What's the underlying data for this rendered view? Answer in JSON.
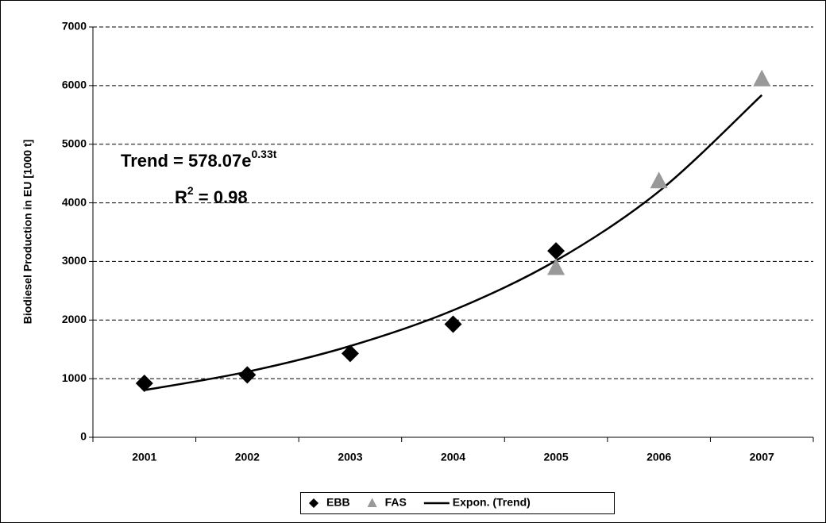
{
  "chart_data": {
    "type": "scatter",
    "y_label": "Biodiesel Production in EU [1000 t]",
    "categories": [
      "2001",
      "2002",
      "2003",
      "2004",
      "2005",
      "2006",
      "2007"
    ],
    "series": [
      {
        "name": "EBB",
        "type": "scatter",
        "marker": "diamond",
        "color": "#000000",
        "values": [
          920,
          1065,
          1430,
          1930,
          3180,
          null,
          null
        ]
      },
      {
        "name": "FAS",
        "type": "scatter",
        "marker": "triangle",
        "color": "#999999",
        "values": [
          null,
          null,
          null,
          null,
          2890,
          4370,
          6110
        ]
      },
      {
        "name": "Expon. (Trend)",
        "type": "line",
        "color": "#000000",
        "values": [
          804,
          1118,
          1557,
          2166,
          3014,
          4195,
          5838
        ]
      }
    ],
    "ylim": [
      0,
      7000
    ],
    "yticks": [
      0,
      1000,
      2000,
      3000,
      4000,
      5000,
      6000,
      7000
    ],
    "grid": true,
    "legend": "bottom",
    "annotations": [
      {
        "text": "Trend = 578.07e",
        "superscript": "0.33t"
      },
      {
        "text": "R",
        "superscript": "2",
        "suffix": " = 0.98"
      }
    ]
  }
}
